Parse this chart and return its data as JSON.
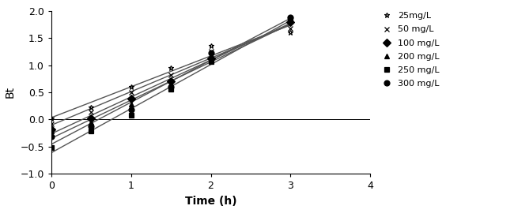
{
  "series": [
    {
      "label": "25mg/L",
      "marker": "*",
      "x": [
        0,
        0.5,
        1.0,
        1.5,
        2.0,
        3.0
      ],
      "y": [
        0.02,
        0.22,
        0.6,
        0.95,
        1.35,
        1.6
      ],
      "fillmarker": false
    },
    {
      "label": "50 mg/L",
      "marker": "x",
      "x": [
        0,
        0.5,
        1.0,
        1.5,
        2.0,
        3.0
      ],
      "y": [
        -0.08,
        0.13,
        0.5,
        0.82,
        1.25,
        1.68
      ],
      "fillmarker": false
    },
    {
      "label": "100 mg/L",
      "marker": "D",
      "x": [
        0,
        0.5,
        1.0,
        1.5,
        2.0,
        3.0
      ],
      "y": [
        -0.18,
        0.02,
        0.38,
        0.7,
        1.12,
        1.8
      ],
      "fillmarker": true
    },
    {
      "label": "200 mg/L",
      "marker": "^",
      "x": [
        0,
        0.5,
        1.0,
        1.5,
        2.0,
        3.0
      ],
      "y": [
        -0.22,
        -0.05,
        0.28,
        0.62,
        1.08,
        1.82
      ],
      "fillmarker": true
    },
    {
      "label": "250 mg/L",
      "marker": "s",
      "x": [
        0,
        0.5,
        1.0,
        1.5,
        2.0,
        3.0
      ],
      "y": [
        -0.52,
        -0.22,
        0.08,
        0.55,
        1.07,
        1.85
      ],
      "fillmarker": true
    },
    {
      "label": "300 mg/L",
      "marker": "o",
      "x": [
        0,
        0.5,
        1.0,
        1.5,
        2.0,
        3.0
      ],
      "y": [
        -0.32,
        -0.12,
        0.18,
        0.6,
        1.22,
        1.88
      ],
      "fillmarker": true
    }
  ],
  "xlabel": "Time (h)",
  "ylabel": "Bt",
  "xlim": [
    0,
    4
  ],
  "ylim": [
    -1,
    2
  ],
  "xticks": [
    0,
    1,
    2,
    3,
    4
  ],
  "yticks": [
    -1,
    -0.5,
    0,
    0.5,
    1,
    1.5,
    2
  ],
  "linecolor": "#555555",
  "linewidth": 1.0,
  "markersize": 5,
  "legend_fontsize": 8,
  "xlabel_fontsize": 10,
  "ylabel_fontsize": 10,
  "tick_fontsize": 9,
  "background_color": "#ffffff"
}
